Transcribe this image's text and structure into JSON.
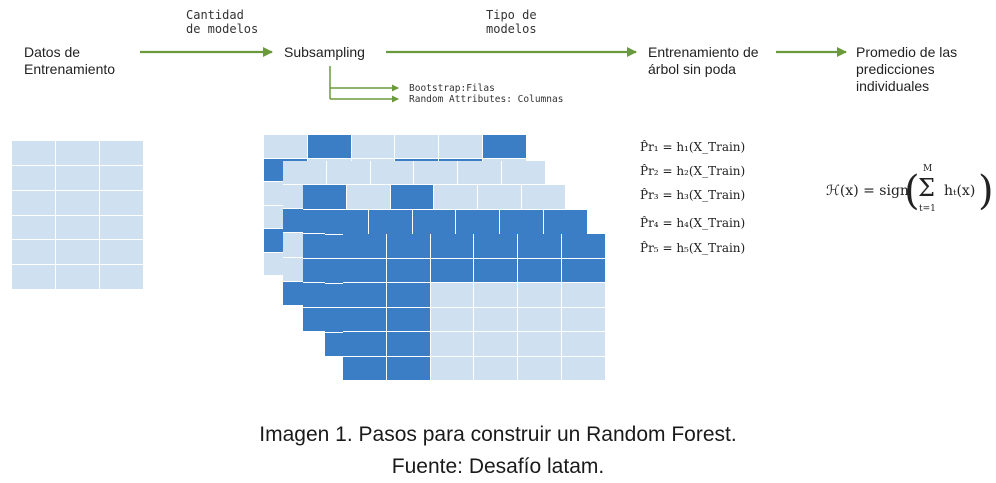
{
  "steps": {
    "datos": "Datos de\nEntrenamiento",
    "subsampling": "Subsampling",
    "entrenamiento": "Entrenamiento de\nárbol sin poda",
    "promedio": "Promedio de las\npredicciones\nindividuales"
  },
  "arrow_labels": {
    "cantidad": "Cantidad\nde modelos",
    "tipo": "Tipo de\nmodelos"
  },
  "sub_options": {
    "bootstrap": "Bootstrap:Filas",
    "random_attr": "Random Attributes: Columnas"
  },
  "formulas": {
    "preds": [
      {
        "lhs": "P̂r₁",
        "rhs": "h₁(X_Train)"
      },
      {
        "lhs": "P̂r₂",
        "rhs": "h₂(X_Train)"
      },
      {
        "lhs": "P̂r₃",
        "rhs": "h₃(X_Train)"
      },
      {
        "lhs": "P̂r₄",
        "rhs": "h₄(X_Train)"
      },
      {
        "lhs": "P̂r₅",
        "rhs": "h₅(X_Train)"
      }
    ],
    "aggregate_lhs": "ℋ(x) = sign",
    "aggregate_sum": "Σ",
    "aggregate_upper": "M",
    "aggregate_lower": "t=1",
    "aggregate_term": "hₜ(x)"
  },
  "caption": {
    "line1": "Imagen 1. Pasos para construir un Random Forest.",
    "line2": "Fuente: Desafío latam."
  },
  "colors": {
    "arrow": "#6a9a3a",
    "cell_light": "#cfe0f1",
    "cell_dark": "#3b7ec6"
  }
}
